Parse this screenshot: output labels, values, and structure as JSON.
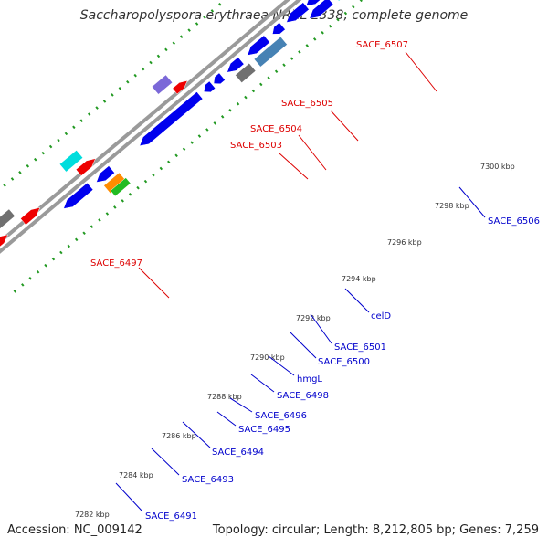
{
  "title": "Saccharopolyspora erythraea NRRL 2338, complete genome",
  "footer": {
    "accession": "Accession: NC_009142",
    "summary": "Topology: circular; Length: 8,212,805 bp; Genes: 7,259"
  },
  "colors": {
    "forward_label": "#dd0000",
    "reverse_label": "#0000cc",
    "backbone": "#9a9a9a",
    "tick_dots": "#229922",
    "red": "#ee0000",
    "blue": "#0000ee",
    "cyan": "#00dddd",
    "purple": "#7b68d8",
    "gray": "#707070",
    "steelblue": "#4682b4",
    "khaki": "#efe6a0",
    "orange": "#ff8c00",
    "green": "#22bb22"
  },
  "scale_ticks": [
    {
      "label": "7282 kbp"
    },
    {
      "label": "7284 kbp"
    },
    {
      "label": "7286 kbp"
    },
    {
      "label": "7288 kbp"
    },
    {
      "label": "7290 kbp"
    },
    {
      "label": "7292 kbp"
    },
    {
      "label": "7294 kbp"
    },
    {
      "label": "7296 kbp"
    },
    {
      "label": "7298 kbp"
    },
    {
      "label": "7300 kbp"
    }
  ],
  "gene_labels": [
    {
      "text": "SACE_6507",
      "strand": "forward"
    },
    {
      "text": "SACE_6505",
      "strand": "forward"
    },
    {
      "text": "SACE_6504",
      "strand": "forward"
    },
    {
      "text": "SACE_6503",
      "strand": "forward"
    },
    {
      "text": "SACE_6497",
      "strand": "forward"
    },
    {
      "text": "SACE_6506",
      "strand": "reverse"
    },
    {
      "text": "celD",
      "strand": "reverse"
    },
    {
      "text": "SACE_6501",
      "strand": "reverse"
    },
    {
      "text": "SACE_6500",
      "strand": "reverse"
    },
    {
      "text": "hmgL",
      "strand": "reverse"
    },
    {
      "text": "SACE_6498",
      "strand": "reverse"
    },
    {
      "text": "SACE_6496",
      "strand": "reverse"
    },
    {
      "text": "SACE_6495",
      "strand": "reverse"
    },
    {
      "text": "SACE_6494",
      "strand": "reverse"
    },
    {
      "text": "SACE_6493",
      "strand": "reverse"
    },
    {
      "text": "SACE_6491",
      "strand": "reverse"
    }
  ]
}
